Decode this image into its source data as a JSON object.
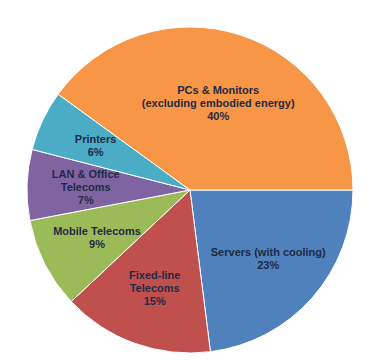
{
  "chart_data": {
    "type": "pie",
    "categories": [
      "Servers (with cooling)",
      "Fixed-line\nTelecoms",
      "Mobile Telecoms",
      "LAN & Office\nTelecoms",
      "Printers",
      "PCs & Monitors\n(excluding embodied energy)"
    ],
    "values": [
      23,
      15,
      9,
      7,
      6,
      40
    ],
    "value_labels": [
      "23%",
      "15%",
      "9%",
      "7%",
      "6%",
      "40%"
    ],
    "colors": [
      "#4f81bd",
      "#c0504d",
      "#9bbb59",
      "#8064a2",
      "#4bacc6",
      "#f79646"
    ],
    "data_labels": true
  }
}
